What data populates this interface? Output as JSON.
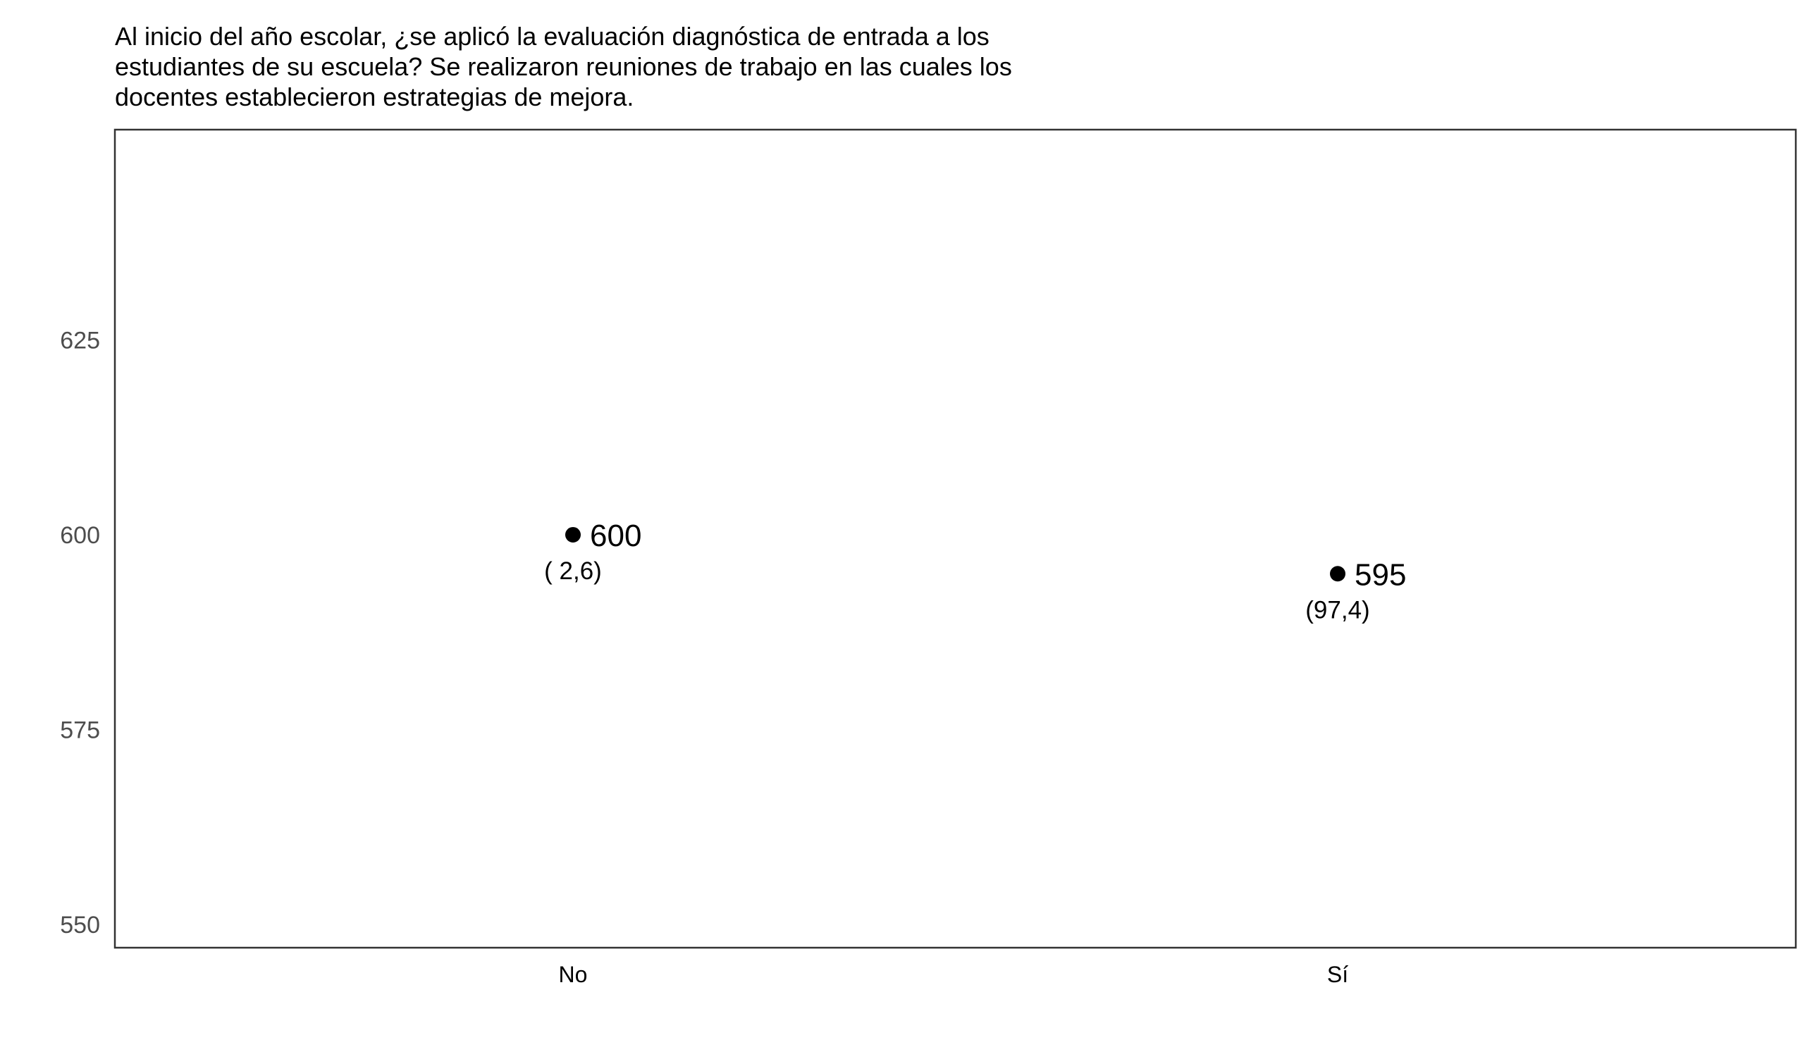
{
  "chart_data": {
    "type": "scatter",
    "title": "Al inicio del año escolar, ¿se aplicó la evaluación diagnóstica de entrada a los estudiantes de su escuela? Se realizaron reuniones de trabajo en las cuales los docentes establecieron estrategias de mejora.",
    "title_lines": [
      "Al inicio del año escolar, ¿se aplicó la evaluación diagnóstica de entrada a los",
      "estudiantes de su escuela? Se realizaron reuniones de trabajo en las cuales los",
      "docentes establecieron estrategias de mejora."
    ],
    "xlabel": "",
    "ylabel": "",
    "categories": [
      "No",
      "Sí"
    ],
    "values": [
      600,
      595
    ],
    "value_labels": [
      "600",
      "595"
    ],
    "percent_labels": [
      "( 2,6)",
      "(97,4)"
    ],
    "ylim": [
      547,
      652
    ],
    "yticks": [
      550,
      575,
      600,
      625
    ],
    "ytick_labels": [
      "550",
      "575",
      "600",
      "625"
    ],
    "grid": false,
    "legend": "none",
    "colors": {
      "point": "#000000",
      "text": "#000000",
      "tick_label": "#4d4d4d",
      "panel_border": "#333333",
      "background": "#ffffff"
    }
  }
}
